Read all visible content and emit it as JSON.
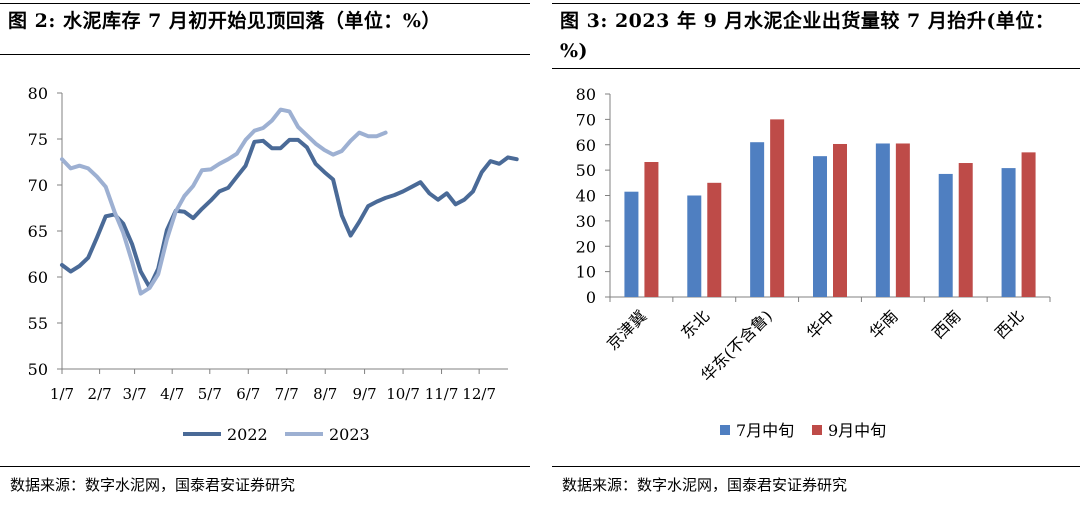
{
  "left": {
    "title": "图 2:  水泥库存 7 月初开始见顶回落（单位：%）",
    "source": "数据来源：数字水泥网，国泰君安证券研究"
  },
  "right": {
    "title": "图 3: 2023 年 9 月水泥企业出货量较 7 月抬升(单位：%)",
    "source": "数据来源：数字水泥网，国泰君安证券研究"
  },
  "chart_data": [
    {
      "type": "line",
      "title": "图 2:  水泥库存 7 月初开始见顶回落（单位：%）",
      "xlabel": "",
      "ylabel": "",
      "ylim": [
        50,
        80
      ],
      "yticks": [
        50,
        55,
        60,
        65,
        70,
        75,
        80
      ],
      "xlim": [
        0,
        51
      ],
      "x_ticks": [
        {
          "label": "1/7",
          "week": 0
        },
        {
          "label": "2/7",
          "week": 4.3
        },
        {
          "label": "3/7",
          "week": 8.3
        },
        {
          "label": "4/7",
          "week": 12.6
        },
        {
          "label": "5/7",
          "week": 16.9
        },
        {
          "label": "6/7",
          "week": 21.3
        },
        {
          "label": "7/7",
          "week": 25.7
        },
        {
          "label": "8/7",
          "week": 30.1
        },
        {
          "label": "9/7",
          "week": 34.6
        },
        {
          "label": "10/7",
          "week": 39
        },
        {
          "label": "11/7",
          "week": 43.4
        },
        {
          "label": "12/7",
          "week": 47.7
        }
      ],
      "grid": false,
      "legend": "bottom",
      "colors": {
        "2022": "#4a6a97",
        "2023": "#9db0d2"
      },
      "series": [
        {
          "name": "2022",
          "values": [
            61.3,
            60.6,
            61.2,
            62.1,
            64.3,
            66.6,
            66.8,
            65.8,
            63.6,
            60.6,
            58.9,
            60.9,
            65.1,
            67.2,
            67.1,
            66.4,
            67.4,
            68.3,
            69.3,
            69.7,
            70.9,
            72.1,
            74.7,
            74.8,
            74.0,
            74.0,
            74.9,
            74.9,
            74.1,
            72.3,
            71.4,
            70.6,
            66.7,
            64.5,
            66.0,
            67.7,
            68.2,
            68.6,
            68.9,
            69.3,
            69.8,
            70.3,
            69.1,
            68.4,
            69.1,
            67.9,
            68.4,
            69.3,
            71.4,
            72.6,
            72.3,
            73.0,
            72.8
          ]
        },
        {
          "name": "2023",
          "values": [
            72.8,
            71.8,
            72.1,
            71.8,
            70.9,
            69.8,
            67.1,
            64.8,
            61.7,
            58.2,
            58.8,
            60.3,
            64.1,
            67.1,
            68.8,
            69.9,
            71.6,
            71.7,
            72.3,
            72.8,
            73.4,
            74.9,
            75.9,
            76.2,
            77.0,
            78.2,
            78.0,
            76.3,
            75.4,
            74.5,
            73.8,
            73.3,
            73.7,
            74.8,
            75.7,
            75.3,
            75.3,
            75.7
          ]
        }
      ]
    },
    {
      "type": "bar",
      "title": "图 3: 2023 年 9 月水泥企业出货量较 7 月抬升(单位：%)",
      "xlabel": "",
      "ylabel": "",
      "ylim": [
        0,
        80
      ],
      "yticks": [
        0,
        10,
        20,
        30,
        40,
        50,
        60,
        70,
        80
      ],
      "categories": [
        "京津冀",
        "东北",
        "华东(不含鲁)",
        "华中",
        "华南",
        "西南",
        "西北"
      ],
      "grid": false,
      "legend": "bottom",
      "colors": {
        "7月中旬": "#4f7fc1",
        "9月中旬": "#be4b48"
      },
      "series": [
        {
          "name": "7月中旬",
          "values": [
            41.5,
            40.0,
            61.0,
            55.5,
            60.5,
            48.5,
            50.8
          ]
        },
        {
          "name": "9月中旬",
          "values": [
            53.2,
            45.0,
            70.0,
            60.3,
            60.5,
            52.8,
            57.0
          ]
        }
      ]
    }
  ]
}
